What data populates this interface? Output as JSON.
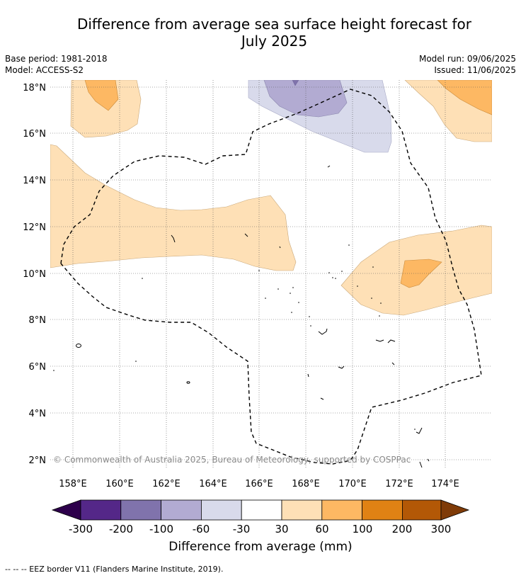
{
  "title_line1": "Difference from average sea surface height forecast for",
  "title_line2": "July 2025",
  "meta_left": {
    "base_period": "Base period: 1981-2018",
    "model": "Model: ACCESS-S2"
  },
  "meta_right": {
    "model_run": "Model run: 09/06/2025",
    "issued": "Issued: 11/06/2025"
  },
  "copyright": "© Commonwealth of Australia 2025, Bureau of Meteorology, supported by COSPPac",
  "lat_labels": [
    "18°N",
    "16°N",
    "14°N",
    "12°N",
    "10°N",
    "8°N",
    "6°N",
    "4°N",
    "2°N"
  ],
  "lon_labels": [
    "158°E",
    "160°E",
    "162°E",
    "164°E",
    "166°E",
    "168°E",
    "170°E",
    "172°E",
    "174°E"
  ],
  "colorbar": {
    "label": "Difference from average (mm)",
    "ticks": [
      "-300",
      "-200",
      "-100",
      "-60",
      "-30",
      "30",
      "60",
      "100",
      "200",
      "300"
    ],
    "colors": {
      "below_300": "#2d004b",
      "m300_m200": "#542788",
      "m200_m100": "#8073ac",
      "m100_m60": "#b2abd2",
      "m60_m30": "#d8daeb",
      "m30_30": "#ffffff",
      "p30_60": "#fee0b6",
      "p60_100": "#fdb863",
      "p100_200": "#e08214",
      "p200_300": "#b35806",
      "above_300": "#7f3b08"
    }
  },
  "eez_legend": "-- -- -- EEZ border V11 (Flanders Marine Institute, 2019)."
}
